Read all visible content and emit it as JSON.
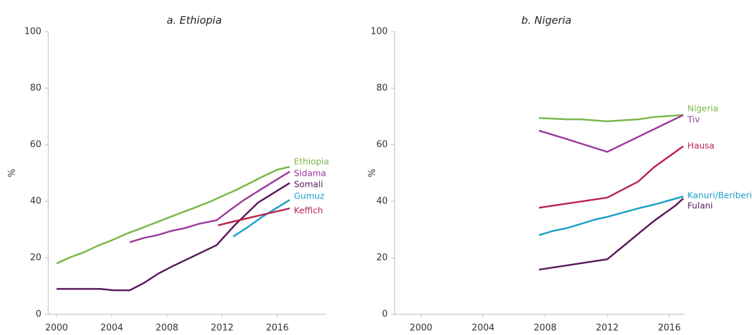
{
  "chart_data": [
    {
      "type": "line",
      "title": "a. Ethiopia",
      "y_label": "%",
      "xlim": [
        1999.4,
        2019.55
      ],
      "xticks": [
        2000,
        2004,
        2008,
        2012,
        2016
      ],
      "ylim": [
        0,
        100
      ],
      "yticks": [
        0,
        20,
        40,
        60,
        80,
        100
      ],
      "series": [
        {
          "name": "Ethiopia",
          "color": "#7ab648",
          "x": [
            2000,
            2001,
            2002,
            2003,
            2004,
            2005,
            2006,
            2007,
            2008,
            2009,
            2010,
            2011,
            2012,
            2013,
            2014,
            2015,
            2016,
            2016.9
          ],
          "values": [
            18,
            20.2,
            22,
            24.3,
            26.2,
            28.4,
            30.2,
            32.1,
            34,
            35.9,
            37.7,
            39.6,
            41.8,
            44,
            46.4,
            48.9,
            51.2,
            52.2
          ]
        },
        {
          "name": "Sidama",
          "color": "#9b3a9b",
          "x": [
            2005.3,
            2006.3,
            2007.3,
            2008.3,
            2009.3,
            2010.3,
            2011.6,
            2012.6,
            2013.6,
            2014.9,
            2016.9
          ],
          "values": [
            25.5,
            27,
            28,
            29.5,
            30.5,
            32,
            33.3,
            37,
            40.5,
            44.5,
            50.5
          ]
        },
        {
          "name": "Somali",
          "color": "#5a1a5a",
          "x": [
            2000,
            2003.15,
            2004.15,
            2005.3,
            2006.3,
            2007.4,
            2008.4,
            2011.6,
            2012.9,
            2014.6,
            2016.9
          ],
          "values": [
            9,
            9,
            8.5,
            8.5,
            11,
            14.5,
            17,
            24.5,
            31.5,
            39.5,
            46.5
          ]
        },
        {
          "name": "Gumuz",
          "color": "#1aa0c8",
          "x": [
            2012.8,
            2013.9,
            2014.9,
            2016.9
          ],
          "values": [
            27.5,
            31,
            34.5,
            40.5
          ]
        },
        {
          "name": "Keffich",
          "color": "#b8234e",
          "x": [
            2011.7,
            2013.4,
            2016.9
          ],
          "values": [
            31.5,
            33.5,
            37.5
          ]
        }
      ]
    },
    {
      "type": "line",
      "title": "b. Nigeria",
      "y_label": "%",
      "xlim": [
        1998.3,
        2016.97
      ],
      "xticks": [
        2000,
        2004,
        2008,
        2012,
        2016
      ],
      "ylim": [
        0,
        100
      ],
      "yticks": [
        0,
        20,
        40,
        60,
        80,
        100
      ],
      "series": [
        {
          "name": "Nigeria",
          "color": "#7ab648",
          "x": [
            2007.6,
            2009.4,
            2010.3,
            2012,
            2014,
            2015,
            2016.9
          ],
          "values": [
            69.5,
            69,
            69,
            68.3,
            69,
            69.8,
            70.5
          ]
        },
        {
          "name": "Tiv",
          "color": "#9b3a9b",
          "x": [
            2007.6,
            2009.4,
            2012,
            2016.9
          ],
          "values": [
            65,
            62,
            57.5,
            70.5
          ]
        },
        {
          "name": "Hausa",
          "color": "#b8234e",
          "x": [
            2007.6,
            2012,
            2014,
            2015,
            2016.9
          ],
          "values": [
            37.7,
            41.3,
            47,
            52,
            59.5
          ]
        },
        {
          "name": "Kanuri/Beriberi",
          "color": "#1aa0c8",
          "x": [
            2007.6,
            2008.5,
            2009.4,
            2010.3,
            2011.2,
            2012,
            2013,
            2014,
            2015,
            2016.9
          ],
          "values": [
            28,
            29.5,
            30.5,
            32,
            33.5,
            34.5,
            36,
            37.5,
            38.8,
            41.7
          ]
        },
        {
          "name": "Fulani",
          "color": "#5a1a5a",
          "x": [
            2007.6,
            2012,
            2012.9,
            2014,
            2015,
            2016.4,
            2016.9
          ],
          "values": [
            15.8,
            19.5,
            23.5,
            28.5,
            33,
            38.5,
            41
          ]
        }
      ]
    }
  ]
}
